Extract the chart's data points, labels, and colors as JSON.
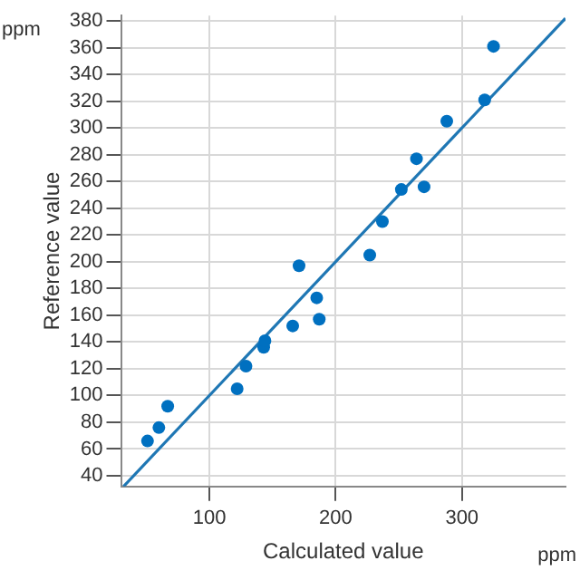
{
  "chart_data": {
    "type": "scatter",
    "xlabel": "Calculated value",
    "ylabel": "Reference value",
    "annotations": [
      "ppm",
      "ppm"
    ],
    "series": [
      {
        "color": "#0070c0",
        "marker": "circle",
        "x": [
          51,
          60,
          67,
          122,
          129,
          143,
          144,
          166,
          171,
          185,
          187,
          227,
          237,
          252,
          264,
          270,
          288,
          318,
          325
        ],
        "values": [
          66,
          76,
          92,
          105,
          122,
          136,
          141,
          152,
          197,
          173,
          157,
          205,
          230,
          254,
          277,
          256,
          305,
          321,
          361
        ]
      },
      {
        "type": "line",
        "color": "#1f77b4",
        "marker": "none",
        "x": [
          32,
          382
        ],
        "values": [
          32,
          382
        ]
      }
    ],
    "xlim": [
      30,
      382
    ],
    "ylim": [
      32,
      384
    ],
    "xticks": [
      100,
      200,
      300
    ],
    "yticks": [
      40,
      60,
      80,
      100,
      120,
      140,
      160,
      180,
      200,
      220,
      240,
      260,
      280,
      300,
      320,
      340,
      360,
      380
    ],
    "grid": true,
    "legend": false
  }
}
